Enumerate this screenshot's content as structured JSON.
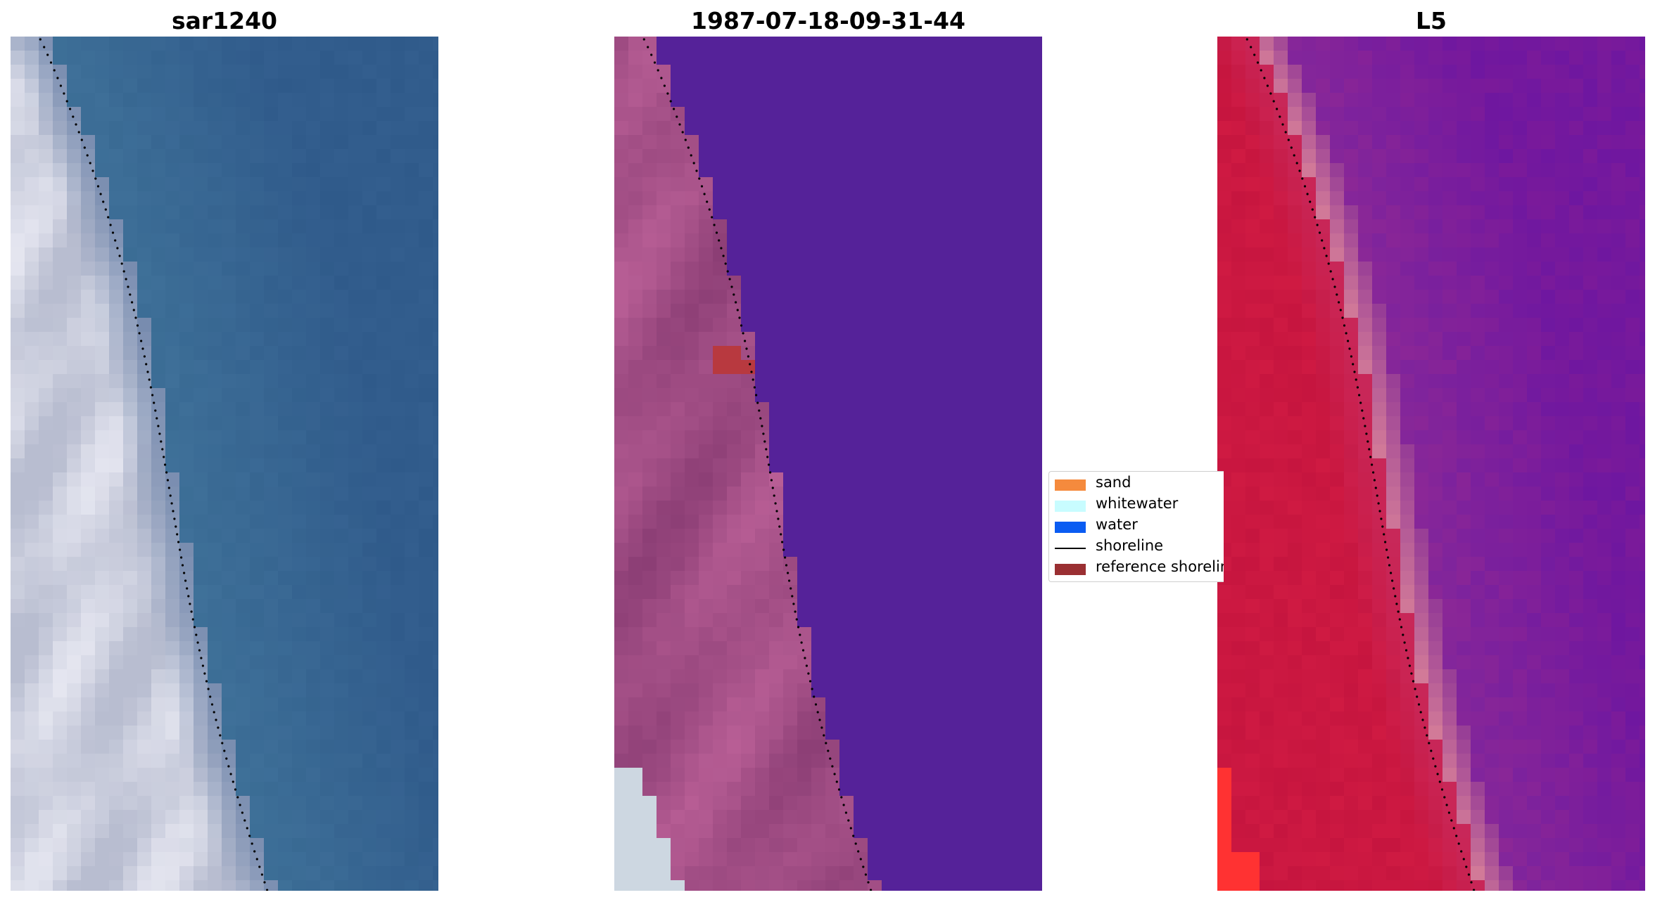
{
  "panels": [
    {
      "title": "sar1240",
      "palette": "rgb"
    },
    {
      "title": "1987-07-18-09-31-44",
      "palette": "classified"
    },
    {
      "title": "L5",
      "palette": "false-color"
    }
  ],
  "legend": {
    "items": [
      {
        "label": "sand",
        "type": "patch",
        "color": "#f58a3d"
      },
      {
        "label": "whitewater",
        "type": "patch",
        "color": "#c8fcff"
      },
      {
        "label": "water",
        "type": "patch",
        "color": "#0a5cf2"
      },
      {
        "label": "shoreline",
        "type": "line",
        "color": "#000000"
      },
      {
        "label": "reference shoreline",
        "type": "patch",
        "color": "#9a2f32"
      }
    ]
  },
  "colors": {
    "rgb_water": "#2f5a8a",
    "rgb_land": "#b8bdd0",
    "classified_water": "#552299",
    "classified_land": "#a24e86",
    "classified_reference": "#b8393f",
    "falsecolor_water": "#7a1a9a",
    "falsecolor_land": "#c0123c",
    "falsecolor_edge": "#d27a98"
  }
}
